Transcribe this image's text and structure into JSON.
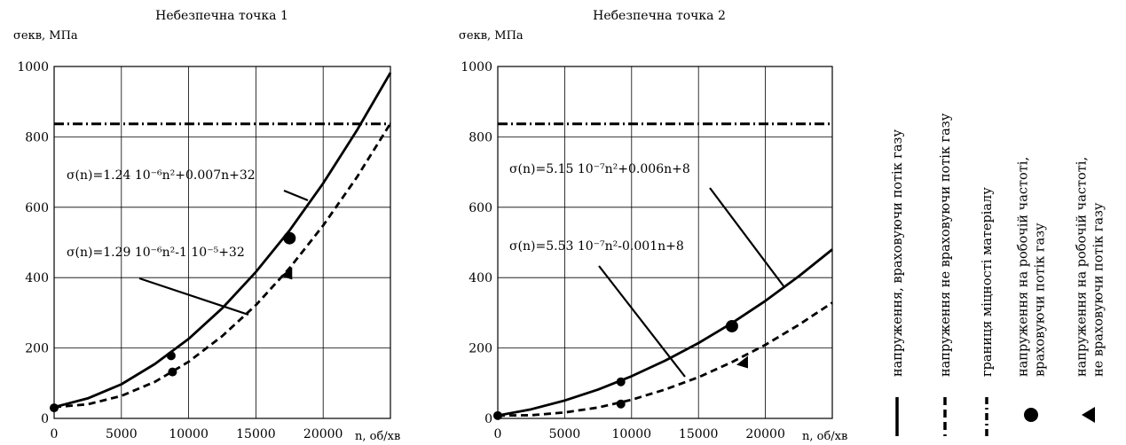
{
  "charts": [
    {
      "title": "Небезпечна точка 1",
      "ylabel": "σекв, МПа",
      "xlabel": "n, об/хв",
      "eq_with_gas": "σ(n)=1.24 10⁻⁶n²+0.007n+32",
      "eq_without_gas": "σ(n)=1.29 10⁻⁶n²-1 10⁻⁵+32"
    },
    {
      "title": "Небезпечна точка 2",
      "ylabel": "σекв, МПа",
      "xlabel": "n, об/хв",
      "eq_with_gas": "σ(n)=5.15 10⁻⁷n²+0.006n+8",
      "eq_without_gas": "σ(n)=5.53 10⁻⁷n²-0.001n+8"
    }
  ],
  "legend": {
    "items": [
      {
        "style": "solid-line",
        "label_lines": [
          "напруження, враховуючи потік газу"
        ]
      },
      {
        "style": "dashed-line",
        "label_lines": [
          "напруження не враховуючи потік газу"
        ]
      },
      {
        "style": "dashdot-line",
        "label_lines": [
          "границя міцності матеріалу"
        ]
      },
      {
        "style": "circle-marker",
        "label_lines": [
          "напруження на робочій частоті,",
          "враховуючи потік газу"
        ]
      },
      {
        "style": "triangle-marker",
        "label_lines": [
          "напруження на робочій частоті,",
          "не враховуючи потік газу"
        ]
      }
    ]
  },
  "chart_data": [
    {
      "type": "line",
      "title": "Небезпечна точка 1",
      "xlabel": "n, об/хв",
      "ylabel": "σекв, МПа",
      "xlim": [
        0,
        25000
      ],
      "ylim": [
        0,
        1000
      ],
      "xticks": [
        0,
        5000,
        10000,
        15000,
        20000
      ],
      "yticks": [
        0,
        200,
        400,
        600,
        800,
        1000
      ],
      "grid": true,
      "strength_limit": 837,
      "series": [
        {
          "style": "solid",
          "x": [
            0,
            2500,
            5000,
            7500,
            10000,
            12500,
            15000,
            17500,
            20000,
            22500,
            25000
          ],
          "y": [
            32,
            57,
            97,
            155,
            226,
            313,
            416,
            534,
            668,
            818,
            982
          ]
        },
        {
          "style": "dashed",
          "x": [
            0,
            2500,
            5000,
            7500,
            10000,
            12500,
            15000,
            17500,
            20000,
            22500,
            25000
          ],
          "y": [
            32,
            40,
            64,
            104,
            161,
            234,
            322,
            427,
            548,
            685,
            838
          ]
        }
      ],
      "points": [
        {
          "marker": "circle-small",
          "x": 0,
          "y": 30
        },
        {
          "marker": "circle-small",
          "x": 8700,
          "y": 178
        },
        {
          "marker": "circle-small",
          "x": 8800,
          "y": 132
        },
        {
          "marker": "circle",
          "x": 17500,
          "y": 512
        },
        {
          "marker": "triangle",
          "x": 17300,
          "y": 412
        }
      ]
    },
    {
      "type": "line",
      "title": "Небезпечна точка 2",
      "xlabel": "n, об/хв",
      "ylabel": "σекв, МПа",
      "xlim": [
        0,
        25000
      ],
      "ylim": [
        0,
        1000
      ],
      "xticks": [
        0,
        5000,
        10000,
        15000,
        20000
      ],
      "yticks": [
        0,
        200,
        400,
        600,
        800,
        1000
      ],
      "grid": true,
      "strength_limit": 837,
      "series": [
        {
          "style": "solid",
          "x": [
            0,
            2500,
            5000,
            7500,
            10000,
            12500,
            15000,
            17500,
            20000,
            22500,
            25000
          ],
          "y": [
            8,
            26,
            51,
            82,
            120,
            164,
            214,
            271,
            334,
            404,
            480
          ]
        },
        {
          "style": "dashed",
          "x": [
            0,
            2500,
            5000,
            7500,
            10000,
            12500,
            15000,
            17500,
            20000,
            22500,
            25000
          ],
          "y": [
            8,
            9,
            17,
            31,
            53,
            82,
            117,
            160,
            209,
            266,
            329
          ]
        }
      ],
      "points": [
        {
          "marker": "circle-small",
          "x": 0,
          "y": 8
        },
        {
          "marker": "circle-small",
          "x": 9200,
          "y": 104
        },
        {
          "marker": "circle-small",
          "x": 9200,
          "y": 41
        },
        {
          "marker": "circle",
          "x": 17500,
          "y": 262
        },
        {
          "marker": "triangle",
          "x": 18300,
          "y": 160
        }
      ]
    }
  ]
}
